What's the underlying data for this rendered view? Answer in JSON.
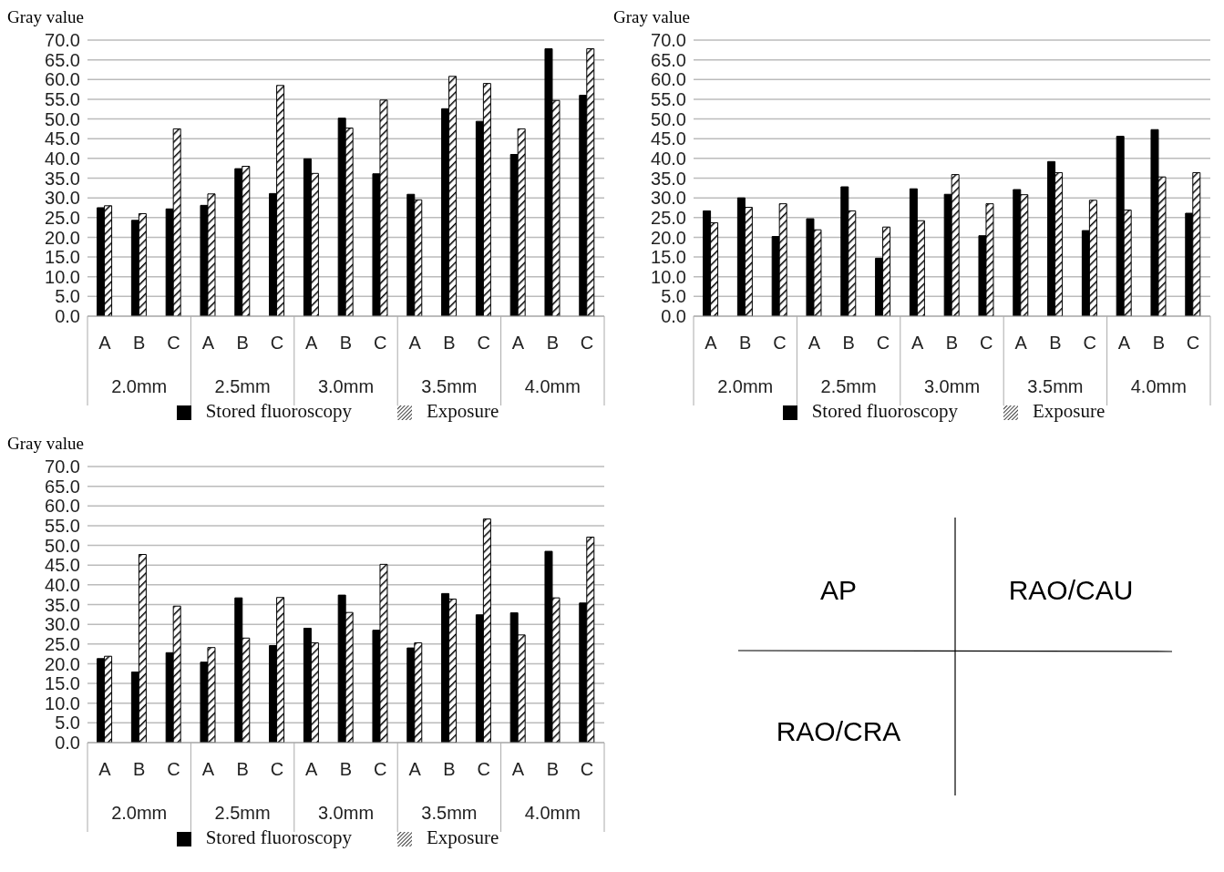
{
  "chart_data": [
    {
      "type": "bar",
      "ylabel": "Gray value",
      "categories": [
        "A",
        "B",
        "C",
        "A",
        "B",
        "C",
        "A",
        "B",
        "C",
        "A",
        "B",
        "C",
        "A",
        "B",
        "C"
      ],
      "annotations": [
        "2.0mm",
        "2.5mm",
        "3.0mm",
        "3.5mm",
        "4.0mm"
      ],
      "series": [
        {
          "name": "Stored fluoroscopy",
          "color": "#000000",
          "values": [
            27.5,
            24.3,
            27.2,
            28.1,
            37.4,
            31.1,
            39.9,
            50.2,
            36.1,
            30.9,
            52.6,
            49.4,
            41.0,
            67.8,
            56.0
          ]
        },
        {
          "name": "Exposure",
          "color": "#000000",
          "values": [
            28.0,
            26.0,
            47.5,
            31.0,
            38.0,
            58.5,
            36.2,
            47.7,
            54.8,
            29.5,
            60.8,
            59.0,
            47.5,
            54.7,
            67.8
          ]
        }
      ],
      "ylim": [
        0,
        70
      ],
      "yticks": [
        {
          "value": 0,
          "label": "0.0"
        },
        {
          "value": 5,
          "label": "5.0"
        },
        {
          "value": 10,
          "label": "10.0"
        },
        {
          "value": 15,
          "label": "15.0"
        },
        {
          "value": 20,
          "label": "20.0"
        },
        {
          "value": 25,
          "label": "25.0"
        },
        {
          "value": 30,
          "label": "30.0"
        },
        {
          "value": 35,
          "label": "35.0"
        },
        {
          "value": 40,
          "label": "40.0"
        },
        {
          "value": 45,
          "label": "45.0"
        },
        {
          "value": 50,
          "label": "50.0"
        },
        {
          "value": 55,
          "label": "55.0"
        },
        {
          "value": 60,
          "label": "60.0"
        },
        {
          "value": 65,
          "label": "65.0"
        },
        {
          "value": 70,
          "label": "70.0"
        }
      ],
      "grid": "y",
      "legend": "bottom"
    },
    {
      "type": "bar",
      "ylabel": "Gray value",
      "categories": [
        "A",
        "B",
        "C",
        "A",
        "B",
        "C",
        "A",
        "B",
        "C",
        "A",
        "B",
        "C",
        "A",
        "B",
        "C"
      ],
      "annotations": [
        "2.0mm",
        "2.5mm",
        "3.0mm",
        "3.5mm",
        "4.0mm"
      ],
      "series": [
        {
          "name": "Stored fluoroscopy",
          "color": "#000000",
          "values": [
            26.7,
            30.0,
            20.2,
            24.7,
            32.8,
            14.7,
            32.3,
            30.9,
            20.4,
            32.1,
            39.2,
            21.7,
            45.6,
            47.3,
            26.1
          ]
        },
        {
          "name": "Exposure",
          "color": "#000000",
          "values": [
            23.7,
            27.6,
            28.5,
            21.9,
            26.7,
            22.6,
            24.2,
            35.9,
            28.5,
            30.8,
            36.4,
            29.4,
            26.9,
            35.3,
            36.4
          ]
        }
      ],
      "ylim": [
        0,
        70
      ],
      "yticks": [
        {
          "value": 0,
          "label": "0.0"
        },
        {
          "value": 5,
          "label": "5.0"
        },
        {
          "value": 10,
          "label": "10.0"
        },
        {
          "value": 15,
          "label": "15.0"
        },
        {
          "value": 20,
          "label": "20.0"
        },
        {
          "value": 25,
          "label": "25.0"
        },
        {
          "value": 30,
          "label": "30.0"
        },
        {
          "value": 35,
          "label": "35.0"
        },
        {
          "value": 40,
          "label": "40.0"
        },
        {
          "value": 45,
          "label": "45.0"
        },
        {
          "value": 50,
          "label": "50.0"
        },
        {
          "value": 55,
          "label": "55.0"
        },
        {
          "value": 60,
          "label": "60.0"
        },
        {
          "value": 65,
          "label": "65.0"
        },
        {
          "value": 70,
          "label": "70.0"
        }
      ],
      "grid": "y",
      "legend": "bottom"
    },
    {
      "type": "bar",
      "ylabel": "Gray value",
      "categories": [
        "A",
        "B",
        "C",
        "A",
        "B",
        "C",
        "A",
        "B",
        "C",
        "A",
        "B",
        "C",
        "A",
        "B",
        "C"
      ],
      "annotations": [
        "2.0mm",
        "2.5mm",
        "3.0mm",
        "3.5mm",
        "4.0mm"
      ],
      "series": [
        {
          "name": "Stored fluoroscopy",
          "color": "#000000",
          "values": [
            21.3,
            17.9,
            22.8,
            20.4,
            36.7,
            24.6,
            29.0,
            37.4,
            28.5,
            24.0,
            37.8,
            32.4,
            32.9,
            48.5,
            35.4
          ]
        },
        {
          "name": "Exposure",
          "color": "#000000",
          "values": [
            21.9,
            47.7,
            34.6,
            24.1,
            26.5,
            36.8,
            25.3,
            33.0,
            45.2,
            25.3,
            36.4,
            56.7,
            27.3,
            36.7,
            52.1
          ]
        }
      ],
      "ylim": [
        0,
        70
      ],
      "yticks": [
        {
          "value": 0,
          "label": "0.0"
        },
        {
          "value": 5,
          "label": "5.0"
        },
        {
          "value": 10,
          "label": "10.0"
        },
        {
          "value": 15,
          "label": "15.0"
        },
        {
          "value": 20,
          "label": "20.0"
        },
        {
          "value": 25,
          "label": "25.0"
        },
        {
          "value": 30,
          "label": "30.0"
        },
        {
          "value": 35,
          "label": "35.0"
        },
        {
          "value": 40,
          "label": "40.0"
        },
        {
          "value": 45,
          "label": "45.0"
        },
        {
          "value": 50,
          "label": "50.0"
        },
        {
          "value": 55,
          "label": "55.0"
        },
        {
          "value": 60,
          "label": "60.0"
        },
        {
          "value": 65,
          "label": "65.0"
        },
        {
          "value": 70,
          "label": "70.0"
        }
      ],
      "grid": "y",
      "legend": "bottom"
    },
    {
      "type": "other",
      "annotations": [
        "AP",
        "RAO/CAU",
        "RAO/CRA"
      ]
    }
  ]
}
